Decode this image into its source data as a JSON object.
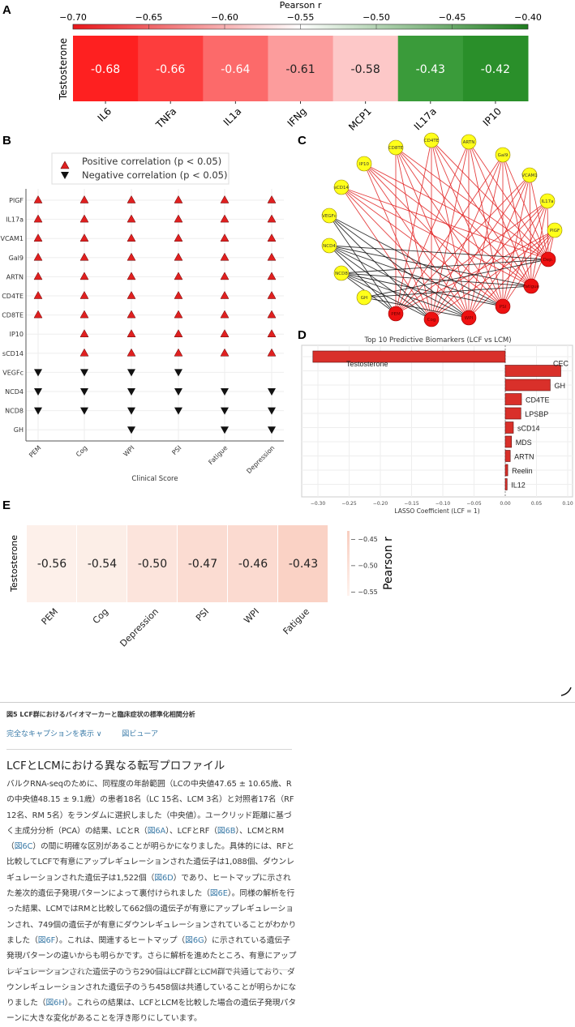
{
  "panel_labels": [
    "A",
    "B",
    "C",
    "D",
    "E"
  ],
  "chart_data": [
    {
      "id": "A",
      "type": "heatmap",
      "row": "Testosterone",
      "categories": [
        "IL6",
        "TNFa",
        "IL1a",
        "IFNg",
        "MCP1",
        "IL17a",
        "IP10"
      ],
      "values": [
        -0.68,
        -0.66,
        -0.64,
        -0.61,
        -0.58,
        -0.43,
        -0.42
      ],
      "value_labels": [
        "-0.68",
        "-0.66",
        "-0.64",
        "-0.61",
        "-0.58",
        "-0.43",
        "-0.42"
      ],
      "colorbar": {
        "label": "Pearson r",
        "range": [
          -0.7,
          -0.4
        ],
        "ticks": [
          "−0.70",
          "−0.65",
          "−0.60",
          "−0.55",
          "−0.50",
          "−0.45",
          "−0.40"
        ],
        "colors": [
          "#e8161a",
          "#ffffff",
          "#1e7d1e"
        ],
        "placement": "top"
      },
      "cell_colors": [
        "#fe2020",
        "#fd3d3d",
        "#fc6a6a",
        "#fc9c9c",
        "#fdc8c8",
        "#3a9b3a",
        "#2a8f2a"
      ]
    },
    {
      "id": "B",
      "type": "scatter",
      "xlabel": "Clinical Score",
      "x_categories": [
        "PEM",
        "Cog",
        "WPI",
        "PSI",
        "Fatigue",
        "Depression"
      ],
      "y_categories": [
        "PlGF",
        "IL17a",
        "VCAM1",
        "Gal9",
        "ARTN",
        "CD4TE",
        "CD8TE",
        "IP10",
        "sCD14",
        "VEGFc",
        "NCD4",
        "NCD8",
        "GH"
      ],
      "legend": {
        "placement": "top",
        "entries": [
          "Positive correlation (p < 0.05)",
          "Negative correlation (p < 0.05)"
        ]
      },
      "grid": true,
      "matrix": [
        [
          1,
          1,
          1,
          1,
          1,
          1
        ],
        [
          1,
          1,
          1,
          1,
          1,
          1
        ],
        [
          1,
          1,
          1,
          1,
          1,
          1
        ],
        [
          1,
          1,
          1,
          1,
          1,
          1
        ],
        [
          1,
          1,
          1,
          1,
          1,
          1
        ],
        [
          1,
          1,
          1,
          1,
          1,
          1
        ],
        [
          1,
          1,
          1,
          1,
          1,
          1
        ],
        [
          0,
          1,
          1,
          1,
          1,
          1
        ],
        [
          0,
          1,
          1,
          1,
          1,
          1
        ],
        [
          -1,
          -1,
          -1,
          -1,
          0,
          0
        ],
        [
          -1,
          -1,
          -1,
          -1,
          -1,
          -1
        ],
        [
          -1,
          -1,
          -1,
          -1,
          -1,
          -1
        ],
        [
          0,
          0,
          -1,
          0,
          -1,
          -1
        ]
      ],
      "colors": {
        "positive": "#e02020",
        "negative": "#111111"
      }
    },
    {
      "id": "C",
      "type": "network",
      "biomarker_nodes": [
        "CD8TE",
        "CD4TE",
        "ARTN",
        "Gal9",
        "VCAM1",
        "IL17a",
        "PlGF",
        "IP10",
        "sCD14",
        "VEGFc",
        "NCD4",
        "NCD8",
        "GH"
      ],
      "clinical_nodes": [
        "Dep.",
        "Fatigue",
        "PSI",
        "WPI",
        "Cog",
        "PEM"
      ],
      "colors": {
        "biomarker": "#ffff1a",
        "clinical": "#ee1111",
        "positive_edge": "#e02020",
        "negative_edge": "#111111"
      }
    },
    {
      "id": "D",
      "type": "bar",
      "orientation": "horizontal",
      "title": "Top 10 Predictive Biomarkers (LCF vs LCM)",
      "xlabel": "LASSO Coefficient (LCF = 1)",
      "categories": [
        "Testosterone",
        "CEC",
        "GH",
        "CD4TE",
        "LPSBP",
        "sCD14",
        "MDS",
        "ARTN",
        "Reelin",
        "IL12"
      ],
      "values": [
        -0.308,
        0.089,
        0.072,
        0.026,
        0.025,
        0.013,
        0.01,
        0.008,
        0.004,
        0.003
      ],
      "xlim": [
        -0.33,
        0.105
      ],
      "xticks": [
        "−0.30",
        "−0.25",
        "−0.20",
        "−0.15",
        "−0.10",
        "−0.05",
        "0.00",
        "0.05",
        "0.10"
      ],
      "xtick_values": [
        -0.3,
        -0.25,
        -0.2,
        -0.15,
        -0.1,
        -0.05,
        0,
        0.05,
        0.1
      ],
      "grid": true,
      "color": "#d9302a"
    },
    {
      "id": "E",
      "type": "heatmap",
      "row": "Testosterone",
      "categories": [
        "PEM",
        "Cog",
        "Depression",
        "PSI",
        "WPI",
        "Fatigue"
      ],
      "values": [
        -0.56,
        -0.54,
        -0.5,
        -0.47,
        -0.46,
        -0.43
      ],
      "value_labels": [
        "-0.56",
        "-0.54",
        "-0.50",
        "-0.47",
        "-0.46",
        "-0.43"
      ],
      "cell_colors": [
        "#fdf0ea",
        "#fceee7",
        "#fce4dc",
        "#fbdcd2",
        "#fbdad0",
        "#fad2c5"
      ],
      "colorbar": {
        "label": "Pearson r",
        "ticks": [
          "− −0.45",
          "− −0.50",
          "− −0.55"
        ],
        "placement": "right"
      }
    }
  ],
  "article": {
    "caption": "図5 LCF群におけるバイオマーカーと臨床症状の標準化相関分析",
    "show_caption_label": "完全なキャプションを表示 ∨",
    "figure_viewer_label": "図ビューア",
    "heading": "LCFとLCMにおける異なる転写プロファイル",
    "paragraph": [
      {
        "t": "バルクRNA-seqのために、同程度の年齢範囲（LCの中央値47.65 ± 10.65歳、Rの中央値48.15 ± 9.1歳）の患者18名（LC 15名、LCM 3名）と対照者17名（RF 12名、RM 5名）をランダムに選択しました（中央値）。ユークリッド距離に基づく主成分分析（PCA）の結果、LCとR（"
      },
      {
        "t": "図6A",
        "link": true
      },
      {
        "t": "）、LCFとRF（"
      },
      {
        "t": "図6B",
        "link": true
      },
      {
        "t": "）、LCMとRM（"
      },
      {
        "t": "図6C",
        "link": true
      },
      {
        "t": "）の間に明確な区別があることが明らかになりました。具体的には、RFと比較してLCFで有意にアップレギュレーションされた遺伝子は1,088個、ダウンレギュレーションされた遺伝子は1,522個（"
      },
      {
        "t": "図6D",
        "link": true
      },
      {
        "t": "）であり、ヒートマップに示された差次的遺伝子発現パターンによって裏付けられました（"
      },
      {
        "t": "図6E",
        "link": true
      },
      {
        "t": "）。同様の解析を行った結果、LCMではRMと比較して662個の遺伝子が有意にアップレギュレーションされ、749個の遺伝子が有意にダウンレギュレーションされていることがわかりました（"
      },
      {
        "t": "図6F",
        "link": true
      },
      {
        "t": "）。これは、関連するヒートマップ（"
      },
      {
        "t": "図6G",
        "link": true
      },
      {
        "t": "）に示されている遺伝子発現パターンの違いからも明らかです。さらに解析を進めたところ、有意にアップレギュレーションされた遺伝子のうち290個はLCF群とLCM群で共通しており、ダウンレギュレーションされた遺伝子のうち458個は共通していることが明らかになりました（"
      },
      {
        "t": "図6H",
        "link": true
      },
      {
        "t": "）。これらの結果は、LCFとLCMを比較した場合の遺伝子発現パターンに大きな変化があることを浮き彫りにしています。"
      }
    ]
  }
}
